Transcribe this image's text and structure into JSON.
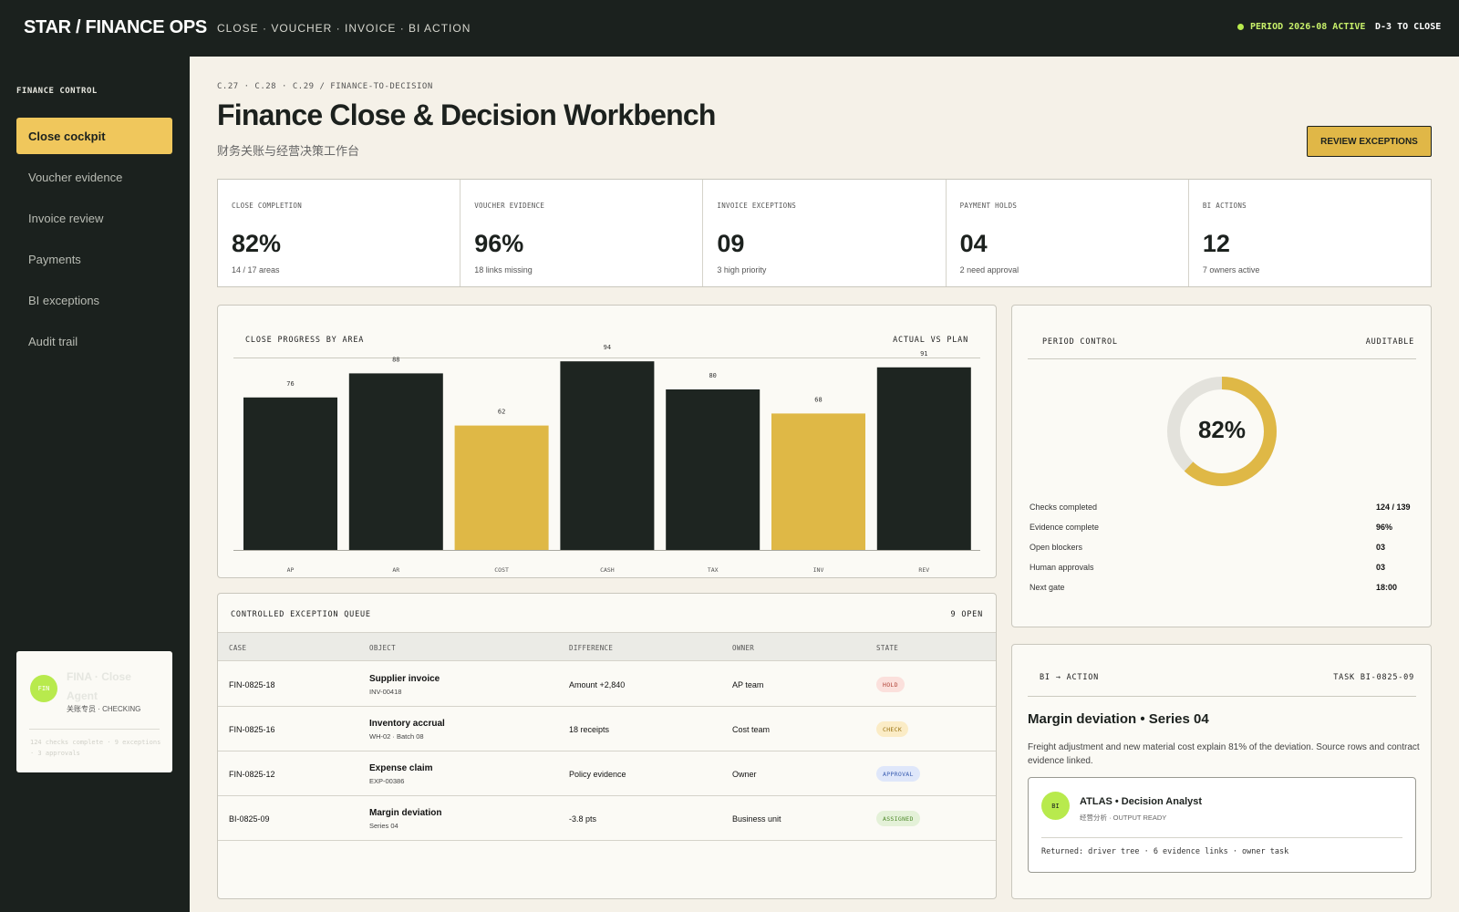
{
  "topbar": {
    "brand": "STAR / FINANCE OPS",
    "nav": "CLOSE · VOUCHER · INVOICE · BI ACTION",
    "period": "PERIOD 2026-08 ACTIVE",
    "countdown": "D-3 TO CLOSE"
  },
  "sidebar": {
    "heading": "FINANCE CONTROL",
    "items": [
      {
        "label": "Close cockpit"
      },
      {
        "label": "Voucher evidence"
      },
      {
        "label": "Invoice review"
      },
      {
        "label": "Payments"
      },
      {
        "label": "BI exceptions"
      },
      {
        "label": "Audit trail"
      }
    ],
    "agent": {
      "avatar": "FIN",
      "name": "FINA · Close Agent",
      "status": "关账专员 · CHECKING",
      "footer": "124 checks complete · 9 exceptions · 3 approvals"
    }
  },
  "header": {
    "breadcrumb": "C.27 · C.28 · C.29 / FINANCE-TO-DECISION",
    "title": "Finance Close & Decision Workbench",
    "subtitle": "财务关账与经营决策工作台",
    "review_button": "REVIEW EXCEPTIONS"
  },
  "kpis": [
    {
      "label": "CLOSE COMPLETION",
      "value": "82%",
      "sub": "14 / 17 areas"
    },
    {
      "label": "VOUCHER EVIDENCE",
      "value": "96%",
      "sub": "18 links missing"
    },
    {
      "label": "INVOICE EXCEPTIONS",
      "value": "09",
      "sub": "3 high priority"
    },
    {
      "label": "PAYMENT HOLDS",
      "value": "04",
      "sub": "2 need approval"
    },
    {
      "label": "BI ACTIONS",
      "value": "12",
      "sub": "7 owners active"
    }
  ],
  "chart_panel": {
    "title": "CLOSE PROGRESS BY AREA",
    "right_label": "ACTUAL VS PLAN"
  },
  "chart_data": {
    "type": "bar",
    "title": "CLOSE PROGRESS BY AREA",
    "categories": [
      "AP",
      "AR",
      "COST",
      "CASH",
      "TAX",
      "INV",
      "REV"
    ],
    "values": [
      76,
      88,
      62,
      94,
      80,
      68,
      91
    ],
    "highlighted": [
      false,
      false,
      true,
      false,
      false,
      true,
      false
    ],
    "colors": {
      "default": "#1e2521",
      "highlight": "#dfb846"
    },
    "ylim": [
      0,
      100
    ]
  },
  "period_control": {
    "title": "PERIOD CONTROL",
    "right_label": "AUDITABLE",
    "donut_value": "82%",
    "donut_fraction": 0.82,
    "stats": [
      {
        "label": "Checks completed",
        "value": "124 / 139"
      },
      {
        "label": "Evidence complete",
        "value": "96%"
      },
      {
        "label": "Open blockers",
        "value": "03"
      },
      {
        "label": "Human approvals",
        "value": "03"
      },
      {
        "label": "Next gate",
        "value": "18:00"
      }
    ]
  },
  "queue": {
    "title": "CONTROLLED EXCEPTION QUEUE",
    "count": "9 OPEN",
    "columns": [
      "CASE",
      "OBJECT",
      "DIFFERENCE",
      "OWNER",
      "STATE"
    ],
    "rows": [
      {
        "case": "FIN-0825-18",
        "object": "Supplier invoice",
        "object_sub": "INV-00418",
        "difference": "Amount +2,840",
        "owner": "AP team",
        "state": "HOLD"
      },
      {
        "case": "FIN-0825-16",
        "object": "Inventory accrual",
        "object_sub": "WH-02 · Batch 08",
        "difference": "18 receipts",
        "owner": "Cost team",
        "state": "CHECK"
      },
      {
        "case": "FIN-0825-12",
        "object": "Expense claim",
        "object_sub": "EXP-00386",
        "difference": "Policy evidence",
        "owner": "Owner",
        "state": "APPROVAL"
      },
      {
        "case": "BI-0825-09",
        "object": "Margin deviation",
        "object_sub": "Series 04",
        "difference": "-3.8 pts",
        "owner": "Business unit",
        "state": "ASSIGNED"
      }
    ]
  },
  "bi_action": {
    "title": "BI → ACTION",
    "task": "TASK BI-0825-09",
    "headline": "Margin deviation • Series 04",
    "body": "Freight adjustment and new material cost explain 81% of the deviation. Source rows and contract evidence linked.",
    "agent_avatar": "BI",
    "agent_name": "ATLAS • Decision Analyst",
    "agent_status": "经营分析 · OUTPUT READY",
    "returned": "Returned: driver tree · 6 evidence links · owner task"
  }
}
